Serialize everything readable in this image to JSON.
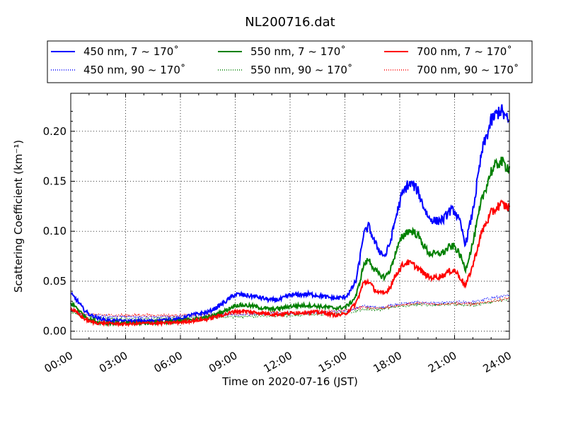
{
  "chart_data": {
    "type": "line",
    "title": "NL200716.dat",
    "xlabel": "Time on 2020-07-16 (JST)",
    "ylabel": "Scattering Coefficient (km⁻¹)",
    "xlim": [
      0,
      24
    ],
    "ylim": [
      -0.008,
      0.238
    ],
    "x_ticks": [
      0,
      3,
      6,
      9,
      12,
      15,
      18,
      21,
      24
    ],
    "x_tick_labels": [
      "00:00",
      "03:00",
      "06:00",
      "09:00",
      "12:00",
      "15:00",
      "18:00",
      "21:00",
      "24:00"
    ],
    "y_ticks": [
      0.0,
      0.05,
      0.1,
      0.15,
      0.2
    ],
    "y_tick_labels": [
      "0.00",
      "0.05",
      "0.10",
      "0.15",
      "0.20"
    ],
    "grid": true,
    "legend_position": "top",
    "series": [
      {
        "name": "450 nm, 7 ~ 170˚",
        "color": "#0000ff",
        "style": "solid",
        "x": [
          0,
          0.3,
          0.7,
          1.0,
          1.5,
          2.0,
          3.0,
          4.0,
          5.0,
          6.0,
          6.5,
          7.5,
          8.0,
          8.5,
          9.0,
          9.5,
          10.0,
          10.5,
          11.0,
          11.5,
          12.0,
          13.0,
          13.5,
          14.0,
          14.5,
          15.0,
          15.3,
          15.6,
          15.8,
          16.0,
          16.3,
          16.6,
          16.9,
          17.2,
          17.5,
          17.8,
          18.1,
          18.4,
          18.7,
          19.0,
          19.3,
          19.6,
          20.0,
          20.4,
          20.7,
          21.0,
          21.3,
          21.6,
          22.0,
          22.5,
          23.0,
          23.5,
          24.0
        ],
        "y": [
          0.037,
          0.032,
          0.022,
          0.017,
          0.013,
          0.011,
          0.01,
          0.01,
          0.011,
          0.012,
          0.016,
          0.019,
          0.024,
          0.03,
          0.037,
          0.036,
          0.035,
          0.033,
          0.031,
          0.032,
          0.036,
          0.037,
          0.036,
          0.034,
          0.033,
          0.034,
          0.04,
          0.05,
          0.07,
          0.096,
          0.105,
          0.09,
          0.08,
          0.075,
          0.09,
          0.115,
          0.135,
          0.146,
          0.147,
          0.14,
          0.125,
          0.113,
          0.11,
          0.112,
          0.12,
          0.121,
          0.108,
          0.087,
          0.12,
          0.18,
          0.21,
          0.222,
          0.208
        ]
      },
      {
        "name": "450 nm, 90 ~ 170˚",
        "color": "#0000ff",
        "style": "dotted",
        "x": [
          0,
          0.5,
          1.0,
          2.0,
          4.0,
          6.0,
          8.0,
          10.0,
          12.0,
          14.0,
          15.0,
          16.0,
          17.0,
          18.0,
          19.0,
          20.0,
          21.0,
          22.0,
          23.0,
          24.0
        ],
        "y": [
          0.022,
          0.018,
          0.016,
          0.015,
          0.014,
          0.015,
          0.016,
          0.017,
          0.018,
          0.019,
          0.02,
          0.025,
          0.024,
          0.027,
          0.029,
          0.028,
          0.029,
          0.029,
          0.033,
          0.036
        ]
      },
      {
        "name": "550 nm, 7 ~ 170˚",
        "color": "#008000",
        "style": "solid",
        "x": [
          0,
          0.3,
          0.7,
          1.0,
          1.5,
          2.0,
          3.0,
          4.0,
          5.0,
          6.0,
          6.5,
          7.5,
          8.0,
          8.5,
          9.0,
          9.5,
          10.0,
          10.5,
          11.0,
          11.5,
          12.0,
          13.0,
          13.5,
          14.0,
          14.5,
          15.0,
          15.3,
          15.6,
          15.8,
          16.0,
          16.3,
          16.6,
          16.9,
          17.2,
          17.5,
          17.8,
          18.1,
          18.4,
          18.7,
          19.0,
          19.3,
          19.6,
          20.0,
          20.4,
          20.7,
          21.0,
          21.3,
          21.6,
          22.0,
          22.5,
          23.0,
          23.5,
          24.0
        ],
        "y": [
          0.028,
          0.024,
          0.016,
          0.012,
          0.009,
          0.008,
          0.008,
          0.008,
          0.009,
          0.01,
          0.012,
          0.014,
          0.017,
          0.021,
          0.026,
          0.026,
          0.025,
          0.023,
          0.022,
          0.023,
          0.025,
          0.026,
          0.025,
          0.024,
          0.023,
          0.024,
          0.028,
          0.035,
          0.048,
          0.065,
          0.072,
          0.062,
          0.056,
          0.054,
          0.062,
          0.08,
          0.093,
          0.1,
          0.1,
          0.096,
          0.086,
          0.078,
          0.077,
          0.079,
          0.084,
          0.085,
          0.076,
          0.062,
          0.088,
          0.132,
          0.16,
          0.17,
          0.163
        ]
      },
      {
        "name": "550 nm, 90 ~ 170˚",
        "color": "#008000",
        "style": "dotted",
        "x": [
          0,
          0.5,
          1.0,
          2.0,
          4.0,
          6.0,
          8.0,
          10.0,
          12.0,
          14.0,
          15.0,
          16.0,
          17.0,
          18.0,
          19.0,
          20.0,
          21.0,
          22.0,
          23.0,
          24.0
        ],
        "y": [
          0.02,
          0.016,
          0.014,
          0.013,
          0.012,
          0.013,
          0.014,
          0.015,
          0.016,
          0.017,
          0.018,
          0.022,
          0.022,
          0.025,
          0.027,
          0.026,
          0.027,
          0.026,
          0.029,
          0.032
        ]
      },
      {
        "name": "700 nm, 7 ~ 170˚",
        "color": "#ff0000",
        "style": "solid",
        "x": [
          0,
          0.3,
          0.7,
          1.0,
          1.5,
          2.0,
          3.0,
          4.0,
          5.0,
          6.0,
          6.5,
          7.5,
          8.0,
          8.5,
          9.0,
          9.5,
          10.0,
          10.5,
          11.0,
          11.5,
          12.0,
          13.0,
          13.5,
          14.0,
          14.5,
          15.0,
          15.3,
          15.6,
          15.8,
          16.0,
          16.3,
          16.6,
          16.9,
          17.2,
          17.5,
          17.8,
          18.1,
          18.4,
          18.7,
          19.0,
          19.3,
          19.6,
          20.0,
          20.4,
          20.7,
          21.0,
          21.3,
          21.6,
          22.0,
          22.5,
          23.0,
          23.5,
          24.0
        ],
        "y": [
          0.022,
          0.019,
          0.013,
          0.01,
          0.008,
          0.008,
          0.007,
          0.008,
          0.008,
          0.009,
          0.01,
          0.012,
          0.015,
          0.017,
          0.02,
          0.02,
          0.019,
          0.018,
          0.017,
          0.017,
          0.018,
          0.019,
          0.019,
          0.018,
          0.016,
          0.017,
          0.022,
          0.028,
          0.037,
          0.048,
          0.05,
          0.042,
          0.038,
          0.038,
          0.045,
          0.057,
          0.065,
          0.069,
          0.067,
          0.063,
          0.058,
          0.054,
          0.054,
          0.056,
          0.06,
          0.061,
          0.054,
          0.045,
          0.066,
          0.1,
          0.118,
          0.127,
          0.124
        ]
      },
      {
        "name": "700 nm, 90 ~ 170˚",
        "color": "#ff0000",
        "style": "dotted",
        "x": [
          0,
          0.5,
          1.0,
          2.0,
          4.0,
          6.0,
          8.0,
          10.0,
          12.0,
          14.0,
          15.0,
          16.0,
          17.0,
          18.0,
          19.0,
          20.0,
          21.0,
          22.0,
          23.0,
          24.0
        ],
        "y": [
          0.021,
          0.018,
          0.017,
          0.016,
          0.016,
          0.016,
          0.017,
          0.018,
          0.019,
          0.02,
          0.021,
          0.024,
          0.023,
          0.026,
          0.028,
          0.027,
          0.028,
          0.027,
          0.03,
          0.033
        ]
      }
    ]
  }
}
